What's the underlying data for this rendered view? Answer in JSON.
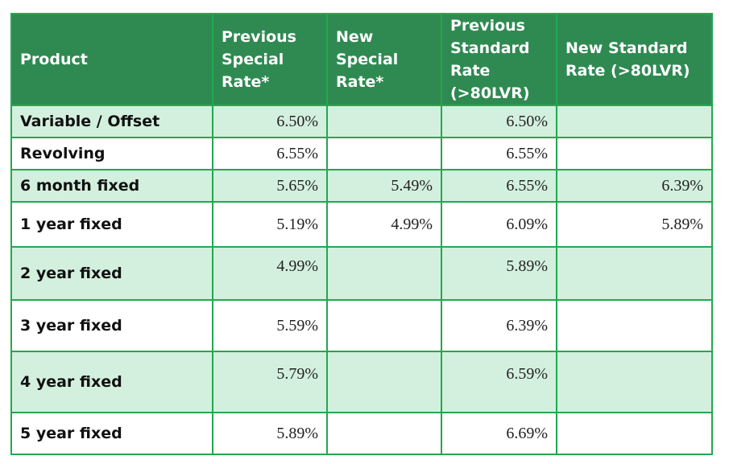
{
  "table": {
    "headers": [
      "Product",
      "Previous Special Rate*",
      "New Special Rate*",
      "Previous Standard Rate (>80LVR)",
      "New Standard Rate  (>80LVR)"
    ],
    "rows": [
      {
        "product": "Variable / Offset",
        "prev_special": "6.50%",
        "new_special": "",
        "prev_standard": "6.50%",
        "new_standard": ""
      },
      {
        "product": "Revolving",
        "prev_special": "6.55%",
        "new_special": "",
        "prev_standard": "6.55%",
        "new_standard": ""
      },
      {
        "product": "6 month fixed",
        "prev_special": "5.65%",
        "new_special": "5.49%",
        "prev_standard": "6.55%",
        "new_standard": "6.39%"
      },
      {
        "product": "1 year fixed",
        "prev_special": "5.19%",
        "new_special": "4.99%",
        "prev_standard": "6.09%",
        "new_standard": "5.89%"
      },
      {
        "product": "2 year fixed",
        "prev_special": "4.99%",
        "new_special": "",
        "prev_standard": "5.89%",
        "new_standard": ""
      },
      {
        "product": "3 year fixed",
        "prev_special": "5.59%",
        "new_special": "",
        "prev_standard": "6.39%",
        "new_standard": ""
      },
      {
        "product": "4 year fixed",
        "prev_special": "5.79%",
        "new_special": "",
        "prev_standard": "6.59%",
        "new_standard": ""
      },
      {
        "product": "5 year fixed",
        "prev_special": "5.89%",
        "new_special": "",
        "prev_standard": "6.69%",
        "new_standard": ""
      }
    ]
  },
  "colors": {
    "header_bg": "#2f8a52",
    "header_text": "#ffffff",
    "shaded_row": "#d3f0de",
    "border": "#22a84f"
  }
}
